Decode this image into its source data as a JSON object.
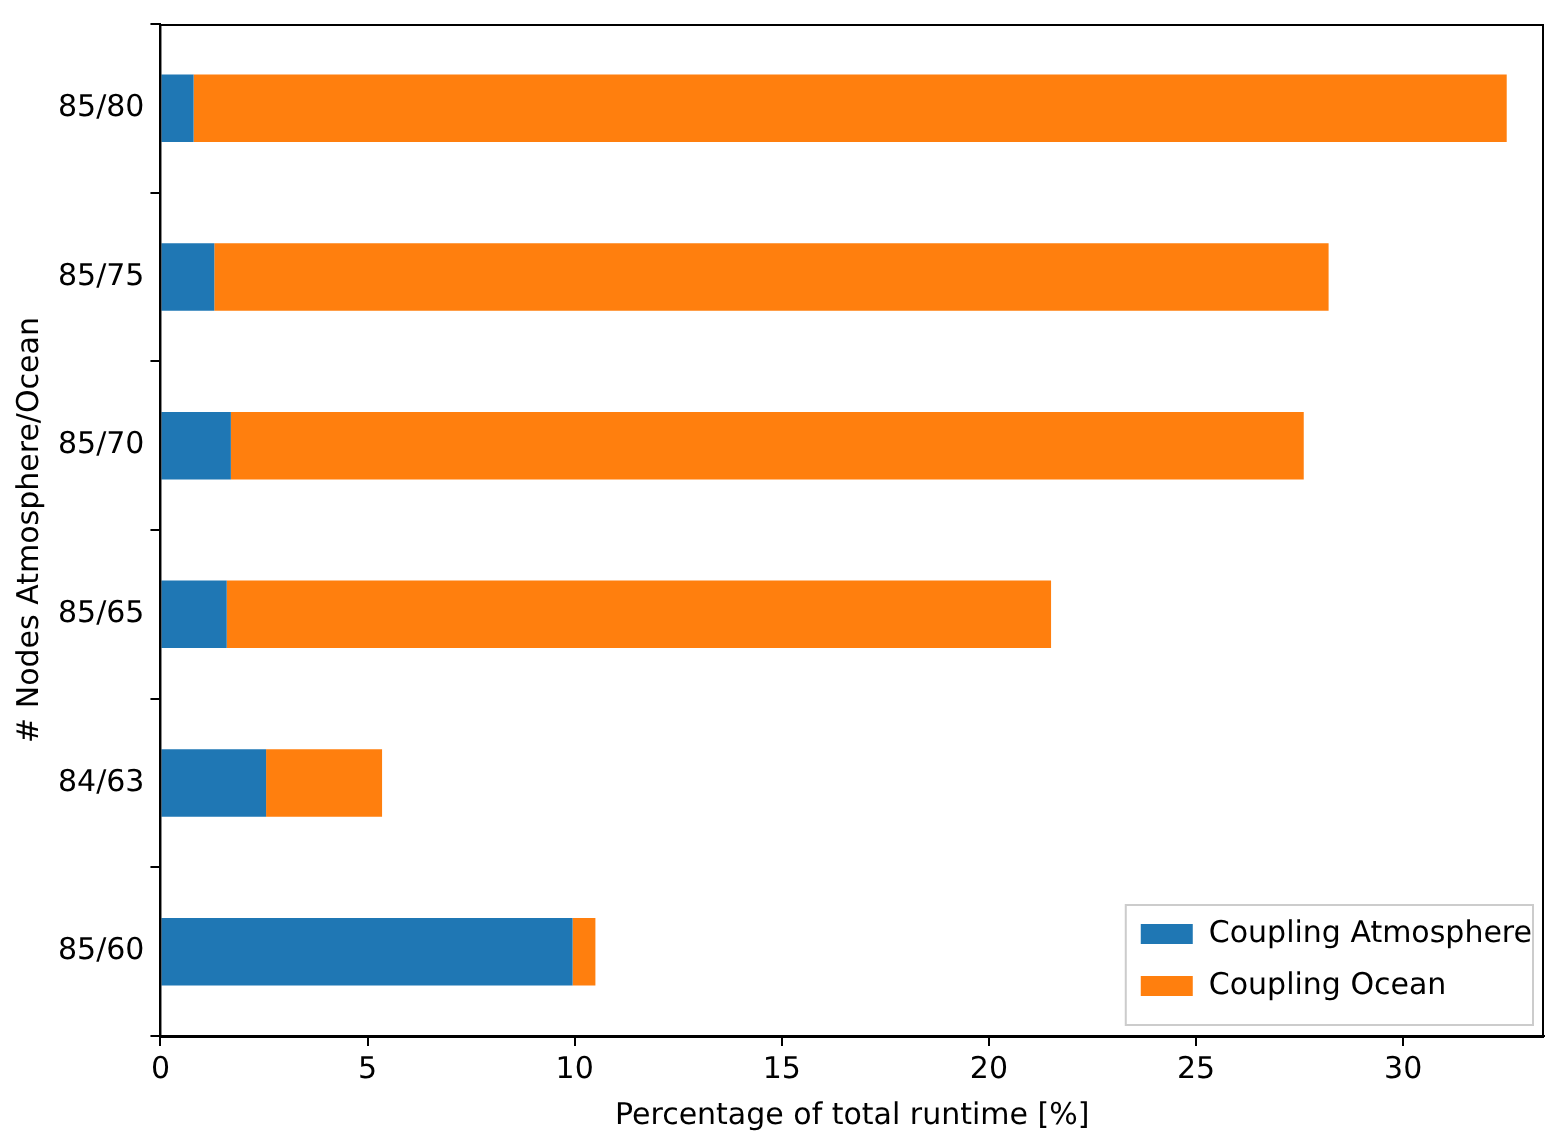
{
  "chart_data": {
    "type": "bar",
    "orientation": "horizontal",
    "stacked": true,
    "xlabel": "Percentage of total runtime [%]",
    "ylabel": "# Nodes Atmosphere/Ocean",
    "categories": [
      "85/80",
      "85/75",
      "85/70",
      "85/65",
      "84/63",
      "85/60"
    ],
    "series": [
      {
        "name": "Coupling Atmosphere",
        "color": "#1f77b4",
        "values": [
          0.8,
          1.3,
          1.7,
          1.6,
          2.55,
          9.95
        ]
      },
      {
        "name": "Coupling Ocean",
        "color": "#ff7f0e",
        "values": [
          31.7,
          26.9,
          25.9,
          19.9,
          2.8,
          0.55
        ]
      }
    ],
    "xlim": [
      0,
      33.4
    ],
    "xticks": [
      0,
      5,
      10,
      15,
      20,
      25,
      30
    ],
    "grid": false,
    "legend": "bottom right"
  }
}
